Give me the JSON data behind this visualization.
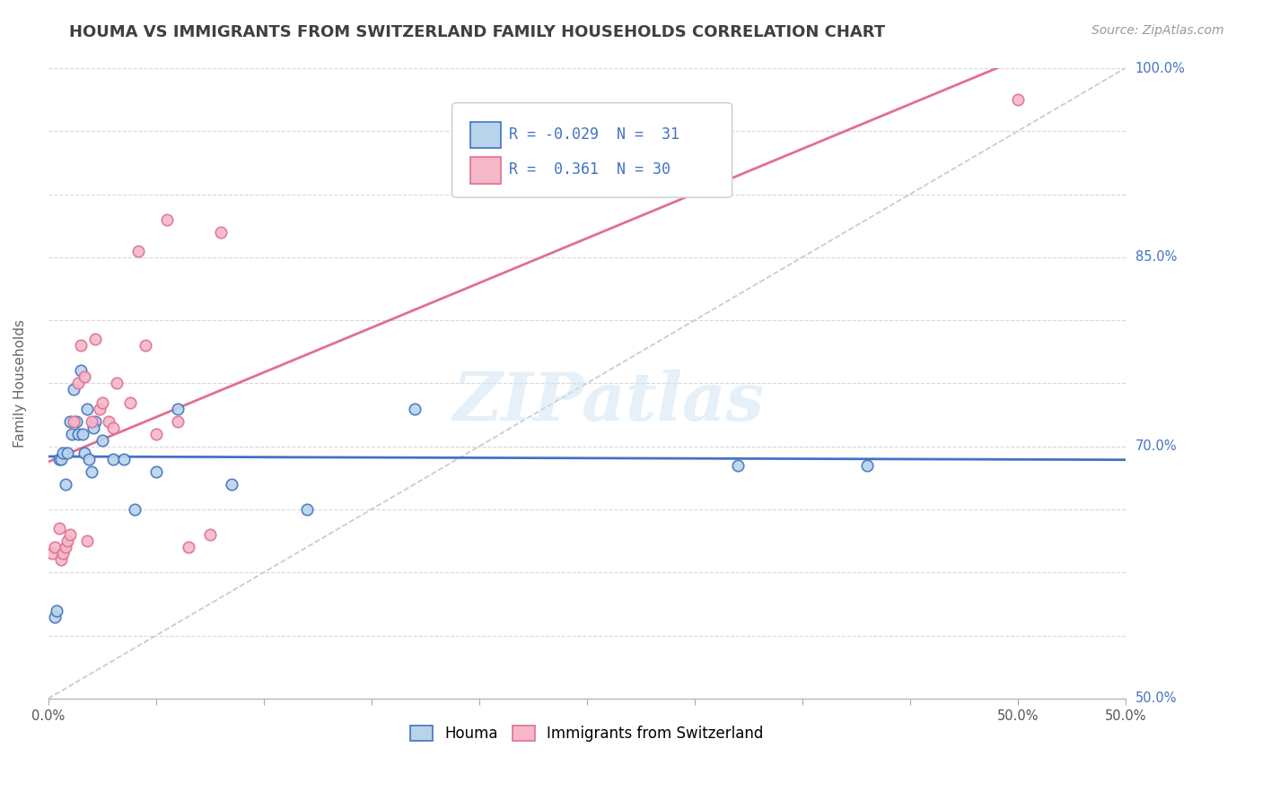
{
  "title": "HOUMA VS IMMIGRANTS FROM SWITZERLAND FAMILY HOUSEHOLDS CORRELATION CHART",
  "source_text": "Source: ZipAtlas.com",
  "ylabel": "Family Households",
  "watermark": "ZIPatlas",
  "xmin": 0.0,
  "xmax": 0.5,
  "ymin": 0.5,
  "ymax": 1.0,
  "xtick_positions": [
    0.0,
    0.05,
    0.1,
    0.15,
    0.2,
    0.25,
    0.3,
    0.35,
    0.4,
    0.45,
    0.5
  ],
  "xtick_labels_show": {
    "0.0": "0.0%",
    "0.5": "50.0%"
  },
  "ytick_positions": [
    0.5,
    0.55,
    0.6,
    0.65,
    0.7,
    0.75,
    0.8,
    0.85,
    0.9,
    0.95,
    1.0
  ],
  "ytick_labels": [
    "50.0%",
    "",
    "",
    "",
    "70.0%",
    "",
    "",
    "85.0%",
    "",
    "",
    "100.0%"
  ],
  "houma_x": [
    0.003,
    0.004,
    0.005,
    0.006,
    0.007,
    0.008,
    0.009,
    0.01,
    0.011,
    0.012,
    0.013,
    0.014,
    0.015,
    0.016,
    0.017,
    0.018,
    0.019,
    0.02,
    0.022,
    0.025,
    0.03,
    0.035,
    0.04,
    0.05,
    0.06,
    0.085,
    0.12,
    0.17,
    0.32,
    0.38,
    0.021
  ],
  "houma_y": [
    0.565,
    0.57,
    0.69,
    0.69,
    0.695,
    0.67,
    0.695,
    0.72,
    0.71,
    0.745,
    0.72,
    0.71,
    0.76,
    0.71,
    0.695,
    0.73,
    0.69,
    0.68,
    0.72,
    0.705,
    0.69,
    0.69,
    0.65,
    0.68,
    0.73,
    0.67,
    0.65,
    0.73,
    0.685,
    0.685,
    0.715
  ],
  "swiss_x": [
    0.002,
    0.003,
    0.005,
    0.006,
    0.007,
    0.008,
    0.009,
    0.01,
    0.012,
    0.014,
    0.015,
    0.017,
    0.018,
    0.02,
    0.022,
    0.024,
    0.025,
    0.028,
    0.03,
    0.032,
    0.038,
    0.042,
    0.045,
    0.05,
    0.055,
    0.06,
    0.065,
    0.075,
    0.08,
    0.45
  ],
  "swiss_y": [
    0.615,
    0.62,
    0.635,
    0.61,
    0.615,
    0.62,
    0.625,
    0.63,
    0.72,
    0.75,
    0.78,
    0.755,
    0.625,
    0.72,
    0.785,
    0.73,
    0.735,
    0.72,
    0.715,
    0.75,
    0.735,
    0.855,
    0.78,
    0.71,
    0.88,
    0.72,
    0.62,
    0.63,
    0.87,
    0.975
  ],
  "houma_fill": "#b8d4ea",
  "houma_edge": "#4472c4",
  "swiss_fill": "#f5b8c8",
  "swiss_edge": "#e07090",
  "houma_line": "#4472c4",
  "swiss_line": "#e07090",
  "diag_line": "#c8c8c8",
  "grid_color": "#d8d8d8",
  "bg_color": "#ffffff",
  "title_color": "#404040",
  "title_fontsize": 13,
  "label_fontsize": 11,
  "tick_fontsize": 10.5,
  "legend_fontsize": 12,
  "source_fontsize": 10,
  "marker_size": 9,
  "marker_edge_width": 1.2,
  "legend_r1": "R = -0.029",
  "legend_n1": "N =  31",
  "legend_r2": "R =  0.361",
  "legend_n2": "N = 30"
}
